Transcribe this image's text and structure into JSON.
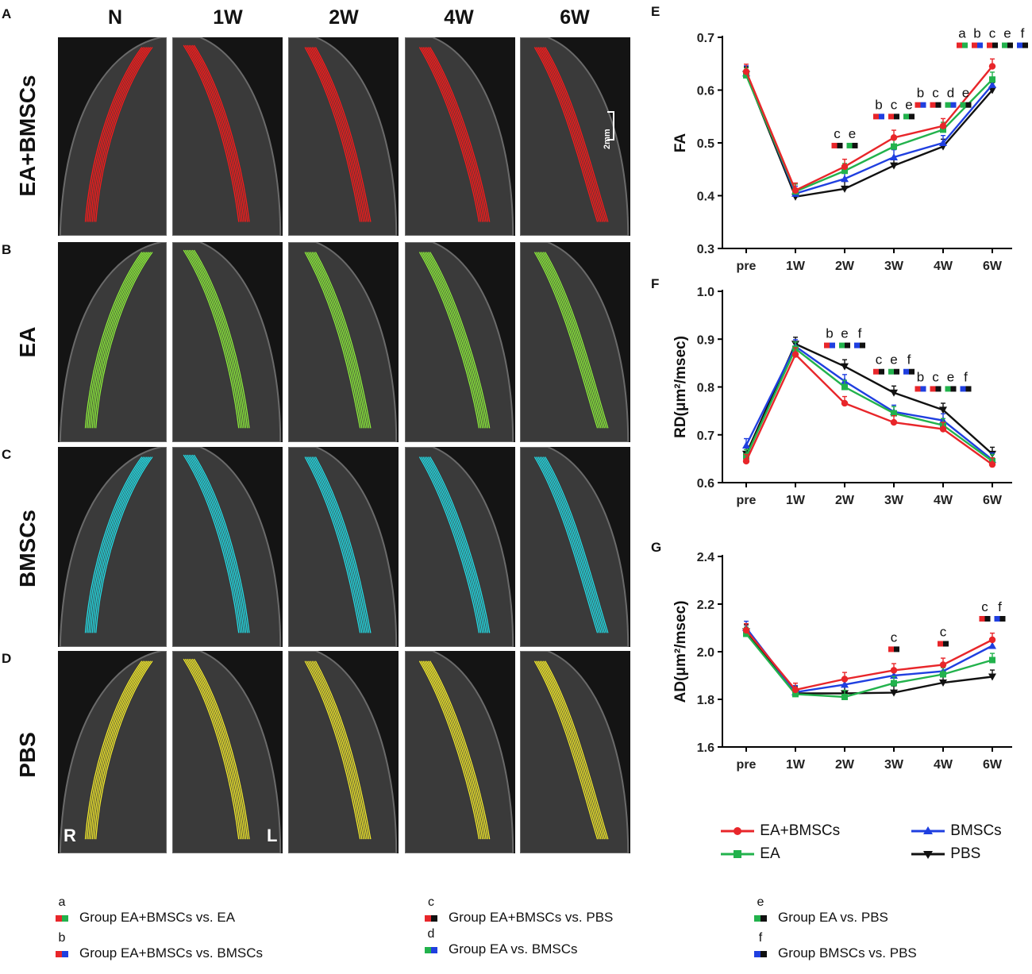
{
  "panel_letters": {
    "A": "A",
    "B": "B",
    "C": "C",
    "D": "D",
    "E": "E",
    "F": "F",
    "G": "G"
  },
  "columns": [
    "N",
    "1W",
    "2W",
    "4W",
    "6W"
  ],
  "rows": [
    {
      "label": "EA+BMSCs",
      "color": "#ff1a1a"
    },
    {
      "label": "EA",
      "color": "#8ef23a"
    },
    {
      "label": "BMSCs",
      "color": "#22e0ea"
    },
    {
      "label": "PBS",
      "color": "#f7ee2a"
    }
  ],
  "scale_bar_label": "2mm",
  "orientation": {
    "right": "R",
    "left": "L"
  },
  "colors": {
    "ea_bmscs": "#e8262a",
    "ea": "#22b24c",
    "bmscs": "#1f3fe0",
    "pbs": "#111111",
    "tract_bg": "#141414"
  },
  "chart_data": [
    {
      "id": "E",
      "type": "line",
      "title": "",
      "ylabel": "FA",
      "xlabel": "",
      "categories": [
        "pre",
        "1W",
        "2W",
        "3W",
        "4W",
        "6W"
      ],
      "ylim": [
        0.3,
        0.7
      ],
      "yticks": [
        "0.3",
        "0.4",
        "0.5",
        "0.6",
        "0.7"
      ],
      "ytick_values": [
        0.3,
        0.4,
        0.5,
        0.6,
        0.7
      ],
      "series": [
        {
          "name": "EA+BMSCs",
          "values": [
            0.635,
            0.41,
            0.455,
            0.51,
            0.532,
            0.645
          ]
        },
        {
          "name": "EA",
          "values": [
            0.628,
            0.408,
            0.447,
            0.493,
            0.525,
            0.62
          ]
        },
        {
          "name": "BMSCs",
          "values": [
            0.632,
            0.404,
            0.432,
            0.473,
            0.5,
            0.61
          ]
        },
        {
          "name": "PBS",
          "values": [
            0.63,
            0.398,
            0.413,
            0.457,
            0.493,
            0.6
          ]
        }
      ],
      "significance": [
        {
          "category": "2W",
          "letters": [
            "c",
            "e"
          ]
        },
        {
          "category": "3W",
          "letters": [
            "b",
            "c",
            "e"
          ]
        },
        {
          "category": "4W",
          "letters": [
            "b",
            "c",
            "d",
            "e"
          ]
        },
        {
          "category": "6W",
          "letters": [
            "a",
            "b",
            "c",
            "e",
            "f"
          ]
        }
      ]
    },
    {
      "id": "F",
      "type": "line",
      "title": "",
      "ylabel": "RD(μm²/msec)",
      "xlabel": "",
      "categories": [
        "pre",
        "1W",
        "2W",
        "3W",
        "4W",
        "6W"
      ],
      "ylim": [
        0.6,
        1.0
      ],
      "yticks": [
        "0.6",
        "0.7",
        "0.8",
        "0.9",
        "1.0"
      ],
      "ytick_values": [
        0.6,
        0.7,
        0.8,
        0.9,
        1.0
      ],
      "series": [
        {
          "name": "EA+BMSCs",
          "values": [
            0.645,
            0.868,
            0.766,
            0.726,
            0.712,
            0.638
          ]
        },
        {
          "name": "EA",
          "values": [
            0.655,
            0.88,
            0.8,
            0.745,
            0.72,
            0.645
          ]
        },
        {
          "name": "BMSCs",
          "values": [
            0.678,
            0.885,
            0.812,
            0.748,
            0.73,
            0.648
          ]
        },
        {
          "name": "PBS",
          "values": [
            0.66,
            0.89,
            0.843,
            0.788,
            0.752,
            0.66
          ]
        }
      ],
      "significance": [
        {
          "category": "2W",
          "letters": [
            "b",
            "e",
            "f"
          ]
        },
        {
          "category": "3W",
          "letters": [
            "c",
            "e",
            "f"
          ]
        },
        {
          "category": "4W",
          "letters": [
            "b",
            "c",
            "e",
            "f"
          ]
        }
      ]
    },
    {
      "id": "G",
      "type": "line",
      "title": "",
      "ylabel": "AD(μm²/msec)",
      "xlabel": "",
      "categories": [
        "pre",
        "1W",
        "2W",
        "3W",
        "4W",
        "6W"
      ],
      "ylim": [
        1.6,
        2.4
      ],
      "yticks": [
        "1.6",
        "1.8",
        "2.0",
        "2.2",
        "2.4"
      ],
      "ytick_values": [
        1.6,
        1.8,
        2.0,
        2.2,
        2.4
      ],
      "series": [
        {
          "name": "EA+BMSCs",
          "values": [
            2.09,
            1.84,
            1.885,
            1.922,
            1.945,
            2.05
          ]
        },
        {
          "name": "EA",
          "values": [
            2.075,
            1.822,
            1.81,
            1.868,
            1.905,
            1.965
          ]
        },
        {
          "name": "BMSCs",
          "values": [
            2.1,
            1.83,
            1.862,
            1.9,
            1.918,
            2.025
          ]
        },
        {
          "name": "PBS",
          "values": [
            2.085,
            1.825,
            1.825,
            1.828,
            1.87,
            1.895
          ]
        }
      ],
      "significance": [
        {
          "category": "3W",
          "letters": [
            "c"
          ]
        },
        {
          "category": "4W",
          "letters": [
            "c"
          ]
        },
        {
          "category": "6W",
          "letters": [
            "c",
            "f"
          ]
        }
      ]
    }
  ],
  "legend": [
    {
      "name": "EA+BMSCs",
      "color": "#e8262a",
      "marker": "circle"
    },
    {
      "name": "BMSCs",
      "color": "#1f3fe0",
      "marker": "triangle-up"
    },
    {
      "name": "EA",
      "color": "#22b24c",
      "marker": "square"
    },
    {
      "name": "PBS",
      "color": "#111111",
      "marker": "triangle-down"
    }
  ],
  "comparison_key": [
    {
      "letter": "a",
      "text": "Group EA+BMSCs vs. EA",
      "colors": [
        "#e8262a",
        "#22b24c"
      ]
    },
    {
      "letter": "b",
      "text": "Group EA+BMSCs vs. BMSCs",
      "colors": [
        "#e8262a",
        "#1f3fe0"
      ]
    },
    {
      "letter": "c",
      "text": "Group EA+BMSCs vs. PBS",
      "colors": [
        "#e8262a",
        "#111111"
      ]
    },
    {
      "letter": "d",
      "text": "Group EA vs. BMSCs",
      "colors": [
        "#22b24c",
        "#1f3fe0"
      ]
    },
    {
      "letter": "e",
      "text": "Group EA vs. PBS",
      "colors": [
        "#22b24c",
        "#111111"
      ]
    },
    {
      "letter": "f",
      "text": "Group BMSCs vs. PBS",
      "colors": [
        "#1f3fe0",
        "#111111"
      ]
    }
  ]
}
